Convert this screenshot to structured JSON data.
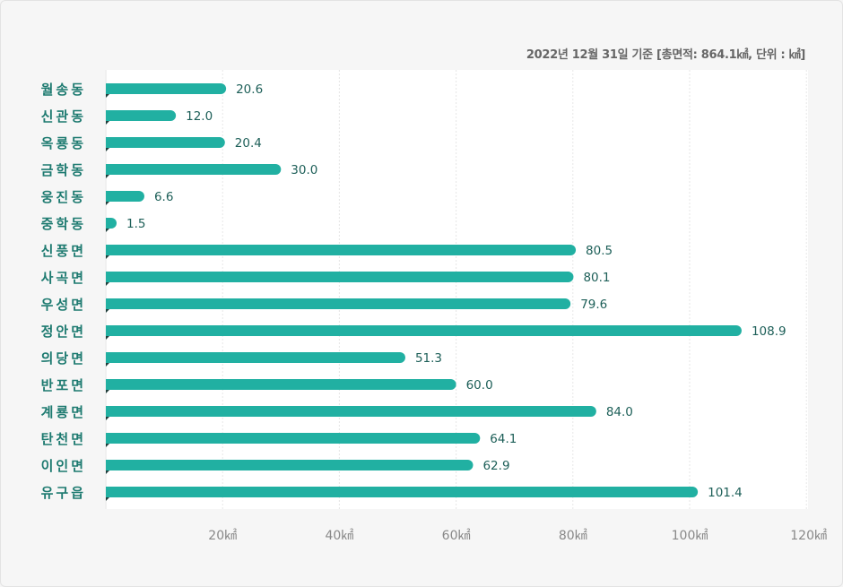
{
  "note": "2022년 12월 31일 기준 [총면적: 864.1㎢, 단위 : ㎢]",
  "chart_data": {
    "type": "bar",
    "orientation": "horizontal",
    "categories": [
      "월송동",
      "신관동",
      "옥룡동",
      "금학동",
      "웅진동",
      "중학동",
      "신풍면",
      "사곡면",
      "우성면",
      "정안면",
      "의당면",
      "반포면",
      "계룡면",
      "탄천면",
      "이인면",
      "유구읍"
    ],
    "values": [
      20.6,
      12.0,
      20.4,
      30.0,
      6.6,
      1.5,
      80.5,
      80.1,
      79.6,
      108.9,
      51.3,
      60.0,
      84.0,
      64.1,
      62.9,
      101.4
    ],
    "value_labels": [
      "20.6",
      "12.0",
      "20.4",
      "30.0",
      "6.6",
      "1.5",
      "80.5",
      "80.1",
      "79.6",
      "108.9",
      "51.3",
      "60.0",
      "84.0",
      "64.1",
      "62.9",
      "101.4"
    ],
    "xlim": [
      0,
      120
    ],
    "x_ticks": [
      20,
      40,
      60,
      80,
      100,
      120
    ],
    "x_tick_labels": [
      "20㎢",
      "40㎢",
      "60㎢",
      "80㎢",
      "100㎢",
      "120㎢"
    ],
    "grid": true,
    "colors": {
      "bar": "#21b0a2",
      "category_label": "#1d7a70",
      "value_label": "#1d5f58",
      "tick": "#888888",
      "grid": "#e6e6e6"
    }
  }
}
